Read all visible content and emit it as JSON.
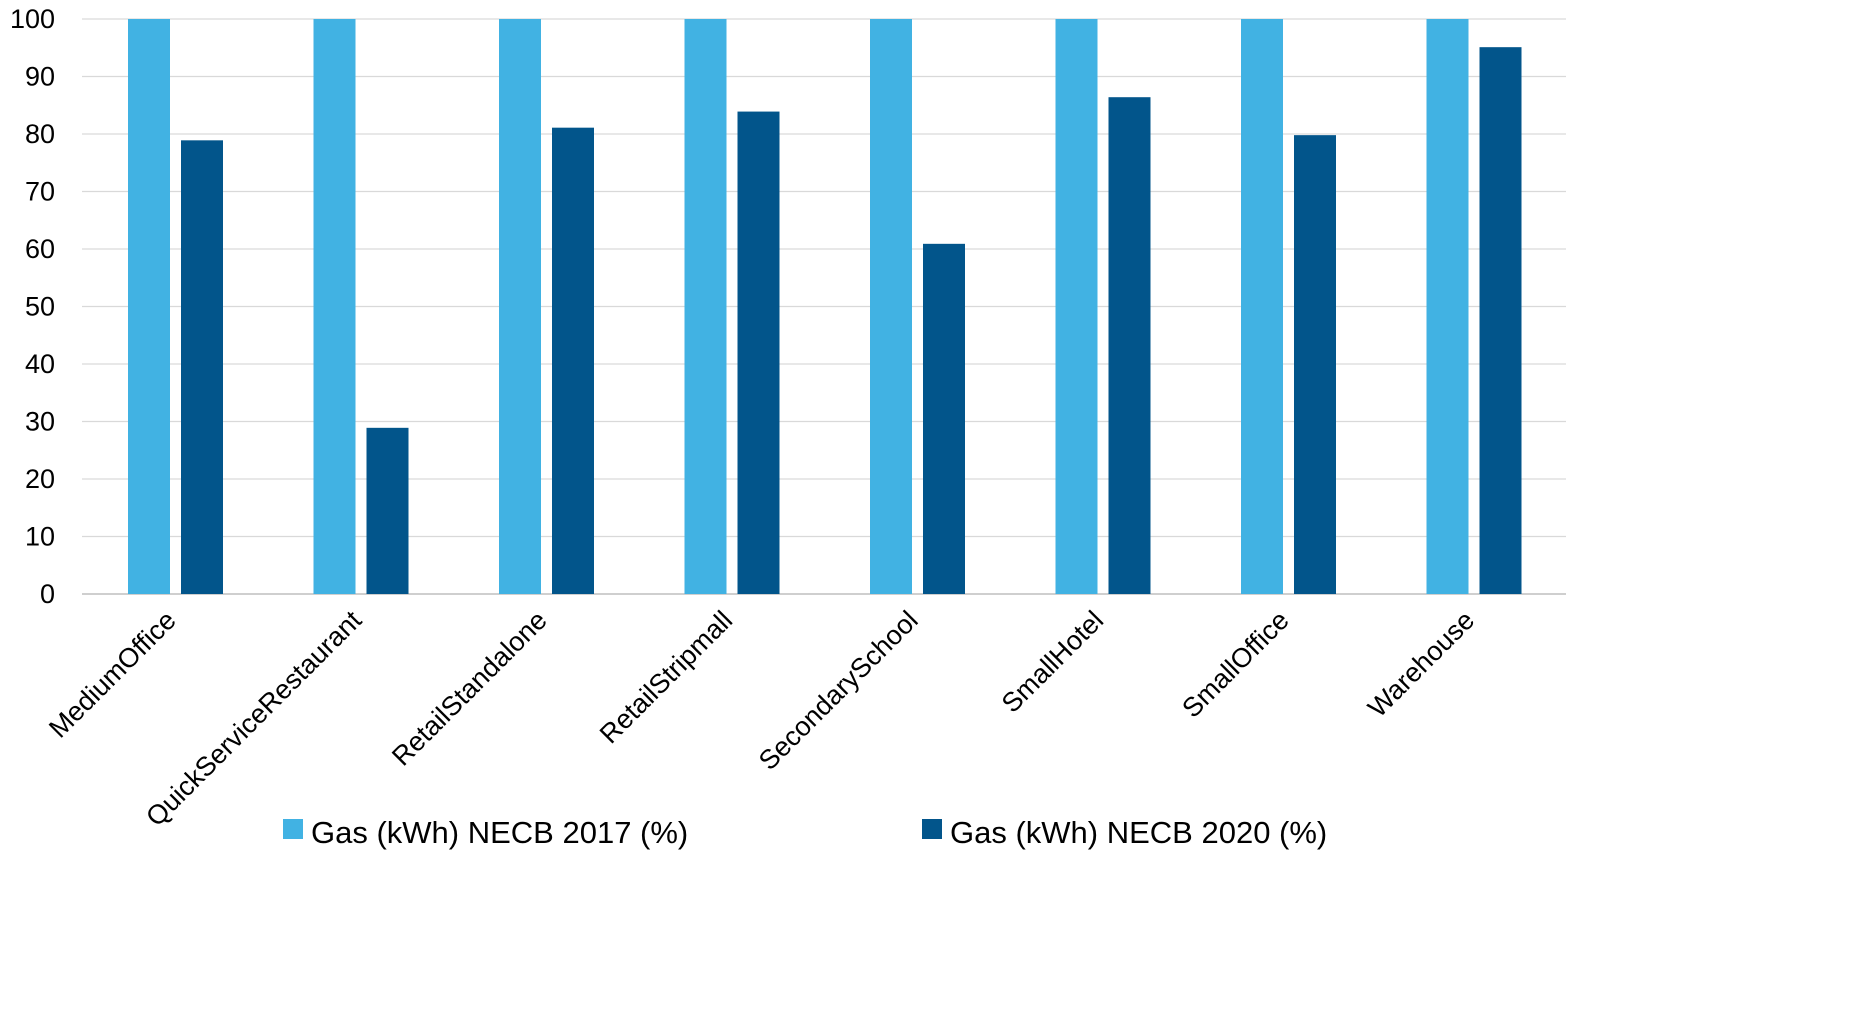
{
  "chart_data": {
    "type": "bar",
    "title": "",
    "xlabel": "",
    "ylabel": "",
    "ylim": [
      0,
      100
    ],
    "yticks": [
      0,
      10,
      20,
      30,
      40,
      50,
      60,
      70,
      80,
      90,
      100
    ],
    "grid": true,
    "legend_position": "bottom",
    "categories": [
      "MediumOffice",
      "QuickServiceRestaurant",
      "RetailStandalone",
      "RetailStripmall",
      "SecondarySchool",
      "SmallHotel",
      "SmallOffice",
      "Warehouse"
    ],
    "series": [
      {
        "name": "Gas (kWh) NECB 2017 (%)",
        "color": "#41b2e3",
        "values": [
          100,
          100,
          100,
          100,
          100,
          100,
          100,
          100
        ]
      },
      {
        "name": "Gas (kWh) NECB 2020 (%)",
        "color": "#02558b",
        "values": [
          78.9,
          28.9,
          81.1,
          83.9,
          60.9,
          86.4,
          79.8,
          95.1
        ]
      }
    ]
  }
}
